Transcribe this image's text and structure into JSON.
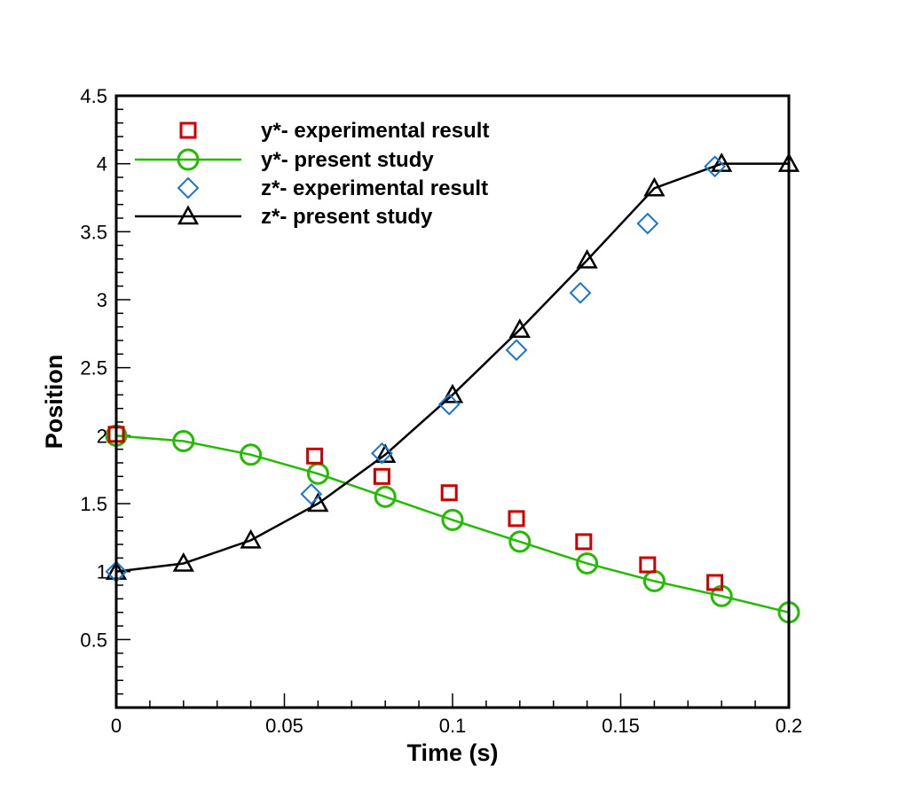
{
  "chart_data": {
    "type": "scatter",
    "xlabel": "Time (s)",
    "ylabel": "Position",
    "xlim": [
      0,
      0.2
    ],
    "ylim": [
      0,
      4.5
    ],
    "x_ticks": [
      0,
      0.05,
      0.1,
      0.15,
      0.2
    ],
    "x_tick_labels": [
      "0",
      "0.05",
      "0.1",
      "0.15",
      "0.2"
    ],
    "y_ticks": [
      0.5,
      1,
      1.5,
      2,
      2.5,
      3,
      3.5,
      4,
      4.5
    ],
    "y_tick_labels": [
      "0.5",
      "1",
      "1.5",
      "2",
      "2.5",
      "3",
      "3.5",
      "4",
      "4.5"
    ],
    "grid": false,
    "legend_position": "top-left",
    "series": [
      {
        "name": "y*- experimental result",
        "marker": "square",
        "line": false,
        "color": "#cc0000",
        "x": [
          0,
          0.059,
          0.079,
          0.099,
          0.119,
          0.139,
          0.158,
          0.178
        ],
        "y": [
          2.01,
          1.85,
          1.7,
          1.58,
          1.39,
          1.22,
          1.05,
          0.92
        ]
      },
      {
        "name": "y*- present study",
        "marker": "circle",
        "line": true,
        "color": "#22bb00",
        "x": [
          0,
          0.02,
          0.04,
          0.06,
          0.08,
          0.1,
          0.12,
          0.14,
          0.16,
          0.18,
          0.2
        ],
        "y": [
          2.0,
          1.96,
          1.86,
          1.72,
          1.55,
          1.38,
          1.22,
          1.06,
          0.93,
          0.82,
          0.7
        ]
      },
      {
        "name": "z*- experimental result",
        "marker": "diamond",
        "line": false,
        "color": "#1a75d1",
        "x": [
          0,
          0.058,
          0.079,
          0.099,
          0.119,
          0.138,
          0.158,
          0.178
        ],
        "y": [
          1.0,
          1.57,
          1.87,
          2.23,
          2.63,
          3.05,
          3.56,
          3.98
        ]
      },
      {
        "name": "z*- present study",
        "marker": "triangle",
        "line": true,
        "color": "#000000",
        "x": [
          0,
          0.02,
          0.04,
          0.06,
          0.08,
          0.1,
          0.12,
          0.14,
          0.16,
          0.18,
          0.2
        ],
        "y": [
          1.0,
          1.06,
          1.23,
          1.5,
          1.86,
          2.3,
          2.78,
          3.29,
          3.82,
          4.0,
          4.0
        ]
      }
    ]
  }
}
